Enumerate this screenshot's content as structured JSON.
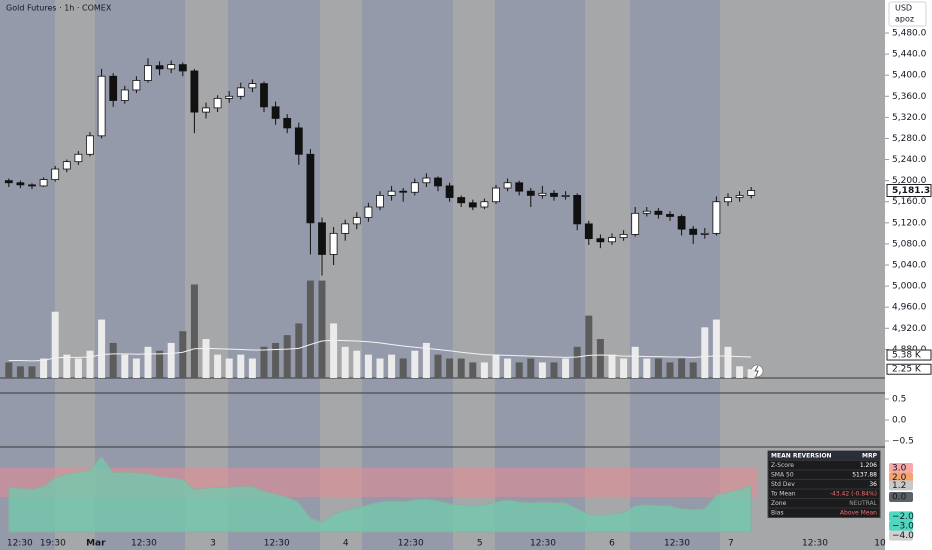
{
  "chart_data": [
    {
      "type": "candlestick",
      "title": "Gold Futures · 1h · COMEX",
      "currency": "USD",
      "account": "apoz",
      "x": [
        1,
        3,
        5,
        7,
        9,
        11,
        13,
        15,
        17,
        19,
        21,
        23,
        25,
        27,
        29,
        31,
        33,
        35,
        37,
        39,
        41,
        43,
        45,
        47,
        49,
        51,
        53,
        55,
        57,
        59,
        61,
        63,
        65,
        67,
        69,
        71,
        73,
        75,
        77,
        79,
        81,
        83,
        85,
        87,
        89,
        91,
        93,
        95,
        97,
        99,
        101,
        103,
        105,
        107,
        109,
        111,
        113,
        115,
        117,
        119,
        121,
        123,
        125,
        127,
        129
      ],
      "open": [
        5200,
        5196,
        5192,
        5190,
        5202,
        5222,
        5236,
        5250,
        5285,
        5398,
        5352,
        5372,
        5390,
        5418,
        5412,
        5420,
        5408,
        5330,
        5338,
        5356,
        5360,
        5376,
        5384,
        5340,
        5318,
        5300,
        5250,
        5120,
        5060,
        5100,
        5118,
        5130,
        5150,
        5172,
        5180,
        5178,
        5196,
        5205,
        5190,
        5168,
        5158,
        5150,
        5160,
        5186,
        5196,
        5180,
        5172,
        5176,
        5170,
        5172,
        5118,
        5090,
        5084,
        5092,
        5098,
        5138,
        5142,
        5136,
        5132,
        5108,
        5098,
        5100,
        5160,
        5168,
        5172
      ],
      "high": [
        5204,
        5200,
        5195,
        5206,
        5228,
        5240,
        5256,
        5292,
        5412,
        5404,
        5380,
        5398,
        5432,
        5426,
        5428,
        5424,
        5412,
        5348,
        5362,
        5370,
        5386,
        5392,
        5388,
        5350,
        5326,
        5310,
        5260,
        5130,
        5112,
        5126,
        5140,
        5158,
        5180,
        5190,
        5186,
        5204,
        5214,
        5208,
        5196,
        5172,
        5164,
        5166,
        5192,
        5204,
        5200,
        5186,
        5190,
        5182,
        5180,
        5176,
        5124,
        5098,
        5100,
        5106,
        5150,
        5150,
        5148,
        5142,
        5136,
        5114,
        5110,
        5170,
        5176,
        5180,
        5188
      ],
      "low": [
        5188,
        5186,
        5184,
        5188,
        5198,
        5216,
        5230,
        5246,
        5280,
        5340,
        5346,
        5366,
        5386,
        5400,
        5404,
        5398,
        5290,
        5318,
        5330,
        5348,
        5354,
        5368,
        5330,
        5306,
        5290,
        5230,
        5060,
        5020,
        5040,
        5086,
        5108,
        5122,
        5144,
        5162,
        5160,
        5172,
        5188,
        5180,
        5160,
        5150,
        5144,
        5146,
        5156,
        5180,
        5172,
        5150,
        5166,
        5162,
        5164,
        5106,
        5078,
        5072,
        5078,
        5086,
        5094,
        5132,
        5128,
        5124,
        5096,
        5080,
        5090,
        5096,
        5152,
        5160,
        5166
      ],
      "close": [
        5196,
        5192,
        5190,
        5202,
        5222,
        5236,
        5250,
        5285,
        5398,
        5352,
        5372,
        5390,
        5418,
        5412,
        5420,
        5408,
        5330,
        5338,
        5356,
        5360,
        5376,
        5384,
        5340,
        5318,
        5300,
        5250,
        5120,
        5060,
        5100,
        5118,
        5130,
        5150,
        5172,
        5180,
        5178,
        5196,
        5205,
        5190,
        5168,
        5158,
        5150,
        5160,
        5186,
        5196,
        5180,
        5172,
        5176,
        5170,
        5172,
        5118,
        5090,
        5084,
        5092,
        5098,
        5138,
        5142,
        5136,
        5132,
        5108,
        5098,
        5100,
        5160,
        5168,
        5172,
        5181.3
      ],
      "last_price_label": "5,181.3",
      "up_color": "#ffffff",
      "down_color": "#111111",
      "volume": [
        4,
        3,
        3,
        5,
        17,
        6,
        5,
        7,
        15,
        9,
        6,
        5,
        8,
        7,
        9,
        12,
        24,
        10,
        6,
        5,
        6,
        5,
        8,
        9,
        11,
        14,
        25,
        25,
        14,
        8,
        7,
        6,
        5,
        6,
        5,
        7,
        9,
        6,
        5,
        5,
        4,
        4,
        6,
        5,
        4,
        5,
        4,
        4,
        5,
        8,
        16,
        10,
        6,
        5,
        8,
        5,
        5,
        4,
        5,
        4,
        13,
        15,
        8,
        3,
        2.25
      ],
      "volume_sma": [
        4.5,
        4.5,
        4.4,
        4.5,
        5.2,
        5.3,
        5.3,
        5.4,
        6.0,
        6.2,
        6.2,
        6.1,
        6.2,
        6.2,
        6.3,
        6.6,
        7.5,
        7.6,
        7.5,
        7.4,
        7.3,
        7.2,
        7.2,
        7.3,
        7.4,
        7.6,
        8.6,
        9.5,
        9.7,
        9.6,
        9.5,
        9.3,
        9.0,
        8.6,
        8.2,
        7.9,
        7.6,
        7.3,
        7.0,
        6.6,
        6.3,
        6.0,
        5.9,
        5.8,
        5.7,
        5.6,
        5.5,
        5.4,
        5.3,
        5.4,
        5.8,
        5.9,
        5.8,
        5.6,
        5.6,
        5.5,
        5.5,
        5.4,
        5.4,
        5.3,
        5.5,
        5.7,
        5.6,
        5.5,
        5.38
      ],
      "volume_last_label": "2.25 K",
      "volume_sma_last_label": "5.38 K",
      "volume_up_color": "#ebebeb",
      "volume_down_color": "#5c5c5c",
      "volume_sma_color": "#f2f2f2",
      "volume_ylim": [
        0,
        97
      ],
      "xlim": [
        -0.517,
        152.07
      ],
      "xticks": [
        {
          "value": 2.9,
          "label": "12:30"
        },
        {
          "value": 8.6,
          "label": "19:30"
        },
        {
          "value": 16,
          "label": "Mar"
        },
        {
          "value": 24.3,
          "label": "12:30"
        },
        {
          "value": 36.2,
          "label": "3"
        },
        {
          "value": 47.2,
          "label": "12:30"
        },
        {
          "value": 59.1,
          "label": "4"
        },
        {
          "value": 70.3,
          "label": "12:30"
        },
        {
          "value": 82.2,
          "label": "5"
        },
        {
          "value": 93.1,
          "label": "12:30"
        },
        {
          "value": 105,
          "label": "6"
        },
        {
          "value": 116.2,
          "label": "12:30"
        },
        {
          "value": 125.5,
          "label": "7"
        },
        {
          "value": 140,
          "label": "12:30"
        },
        {
          "value": 151.2,
          "label": "10"
        }
      ],
      "ylim": [
        4825.7,
        5542.6
      ],
      "yticks": [
        {
          "value": 4880,
          "label": "4,880.0"
        },
        {
          "value": 4920,
          "label": "4,920.0"
        },
        {
          "value": 4960,
          "label": "4,960.0"
        },
        {
          "value": 5000,
          "label": "5,000.0"
        },
        {
          "value": 5040,
          "label": "5,040.0"
        },
        {
          "value": 5080,
          "label": "5,080.0"
        },
        {
          "value": 5120,
          "label": "5,120.0"
        },
        {
          "value": 5160,
          "label": "5,160.0"
        },
        {
          "value": 5200,
          "label": "5,200.0"
        },
        {
          "value": 5240,
          "label": "5,240.0"
        },
        {
          "value": 5280,
          "label": "5,280.0"
        },
        {
          "value": 5320,
          "label": "5,320.0"
        },
        {
          "value": 5360,
          "label": "5,360.0"
        },
        {
          "value": 5400,
          "label": "5,400.0"
        },
        {
          "value": 5440,
          "label": "5,440.0"
        },
        {
          "value": 5480,
          "label": "5,480.0"
        }
      ]
    },
    {
      "type": "line",
      "ylim": [
        -0.643,
        0.595
      ],
      "yticks": [
        0.5,
        {
          "value": 0,
          "label": "0.0"
        },
        {
          "value": -0.5,
          "label": "−0.5"
        }
      ]
    },
    {
      "type": "area",
      "color": "#74c9ad",
      "band_color": "#e88a94",
      "values": [
        1.0,
        0.9,
        0.8,
        1.1,
        2.0,
        2.4,
        2.6,
        2.8,
        4.2,
        2.5,
        2.6,
        2.5,
        2.4,
        2.1,
        2.0,
        1.8,
        0.8,
        0.9,
        1.0,
        1.0,
        1.1,
        1.1,
        0.6,
        0.3,
        0.0,
        -0.6,
        -2.2,
        -2.6,
        -1.8,
        -1.4,
        -1.1,
        -0.8,
        -0.5,
        -0.4,
        -0.5,
        -0.3,
        -0.2,
        -0.4,
        -0.7,
        -0.8,
        -0.9,
        -0.8,
        -0.5,
        -0.3,
        -0.5,
        -0.6,
        -0.5,
        -0.6,
        -0.6,
        -1.2,
        -1.8,
        -1.9,
        -1.7,
        -1.6,
        -0.9,
        -0.8,
        -0.9,
        -0.9,
        -1.2,
        -1.3,
        -1.2,
        0.2,
        0.5,
        0.8,
        1.206
      ],
      "ylim": [
        -5.48,
        4.86
      ],
      "yticks": [
        {
          "value": 3,
          "label": "3.0",
          "color": "#f7a8a8"
        },
        {
          "value": 2,
          "label": "2.0",
          "color": "#f5a46c"
        },
        {
          "value": 1.2,
          "label": "1.2",
          "color": "#c9c9c9"
        },
        {
          "value": 0,
          "label": "0.0",
          "color": "#5d6066"
        },
        {
          "value": -2,
          "label": "−2.0",
          "color": "#4fd8bf"
        },
        {
          "value": -3,
          "label": "−3.0",
          "color": "#4fd8bf"
        },
        {
          "value": -4,
          "label": "−4.0",
          "color": "#d0d0d0"
        }
      ],
      "table": {
        "header": [
          "MEAN REVERSION",
          "MRP"
        ],
        "rows": [
          {
            "label": "Z-Score",
            "value": "1.206",
            "color": "#ffffff"
          },
          {
            "label": "SMA 50",
            "value": "5137.88",
            "color": "#ffffff"
          },
          {
            "label": "Std Dev",
            "value": "36",
            "color": "#ffffff"
          },
          {
            "label": "To Mean",
            "value": "-43.42  (-0.84%)",
            "color": "#f26d6d"
          },
          {
            "label": "Zone",
            "value": "NEUTRAL",
            "color": "#9a9a9a"
          },
          {
            "label": "Bias",
            "value": "Above Mean",
            "color": "#f26d6d"
          }
        ]
      }
    }
  ]
}
